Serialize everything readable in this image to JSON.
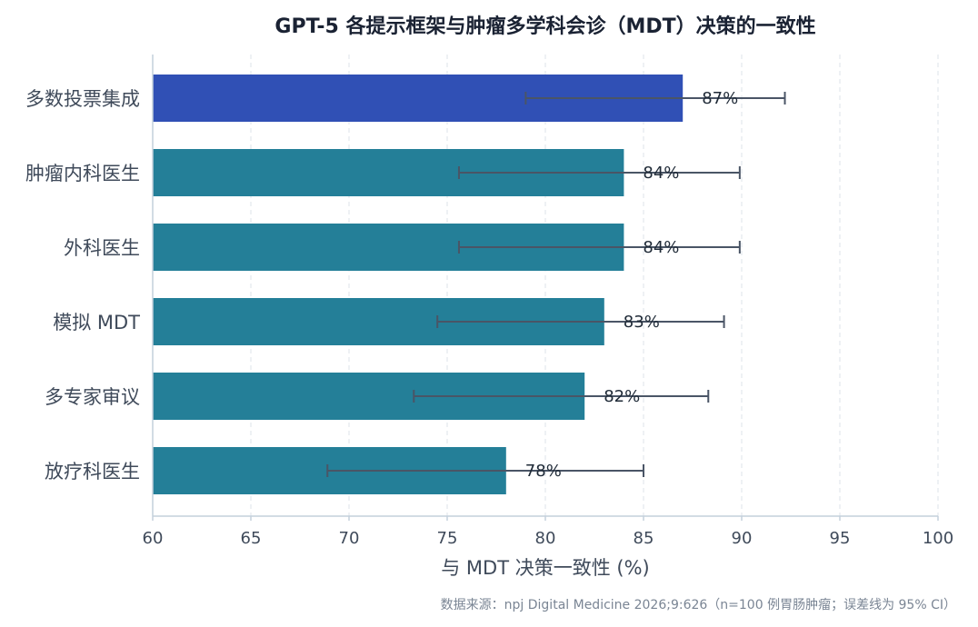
{
  "chart_data": {
    "type": "bar",
    "orientation": "horizontal",
    "title": "GPT-5 各提示框架与肿瘤多学科会诊（MDT）决策的一致性",
    "xlabel": "与 MDT 决策一致性 (%)",
    "ylabel": "",
    "xlim": [
      60,
      100
    ],
    "xticks": [
      60,
      65,
      70,
      75,
      80,
      85,
      90,
      95,
      100
    ],
    "categories": [
      "多数投票集成",
      "肿瘤内科医生",
      "外科医生",
      "模拟 MDT",
      "多专家审议",
      "放疗科医生"
    ],
    "values": [
      87,
      84,
      84,
      83,
      82,
      78
    ],
    "value_labels": [
      "87%",
      "84%",
      "84%",
      "83%",
      "82%",
      "78%"
    ],
    "ci_lower": [
      79,
      75.6,
      75.6,
      74.5,
      73.3,
      68.9
    ],
    "ci_upper": [
      92.2,
      89.9,
      89.9,
      89.1,
      88.3,
      85
    ],
    "highlight_category": "多数投票集成",
    "grid": "x-dashed",
    "legend": "none",
    "source_note": "数据来源：npj Digital Medicine 2026;9:626（n=100 例胃肠肿瘤；误差线为 95% CI）"
  },
  "colors": {
    "highlight_bar": "#3050b5",
    "bar": "#247f98",
    "error_bar": "#4a5566",
    "grid": "#dde3ea",
    "axis": "#c4d0dc"
  }
}
